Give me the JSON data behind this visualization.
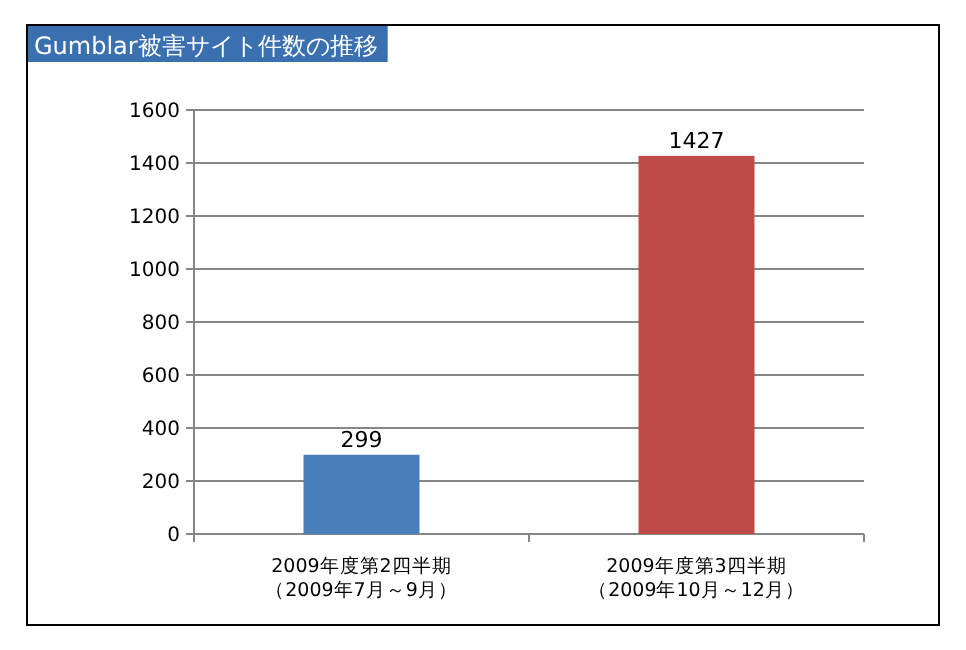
{
  "chart_data": {
    "type": "bar",
    "title": "Gumblar被害サイト件数の推移",
    "categories": [
      "2009年度第2四半期（2009年7月～9月）",
      "2009年度第3四半期（2009年10月～12月）"
    ],
    "values": [
      299,
      1427
    ],
    "colors": [
      "#4a7ebb",
      "#be4b48"
    ],
    "data_labels": true,
    "ylim": [
      0,
      1600
    ],
    "yticks": [
      0,
      200,
      400,
      600,
      800,
      1000,
      1200,
      1400,
      1600
    ],
    "grid": "y"
  }
}
